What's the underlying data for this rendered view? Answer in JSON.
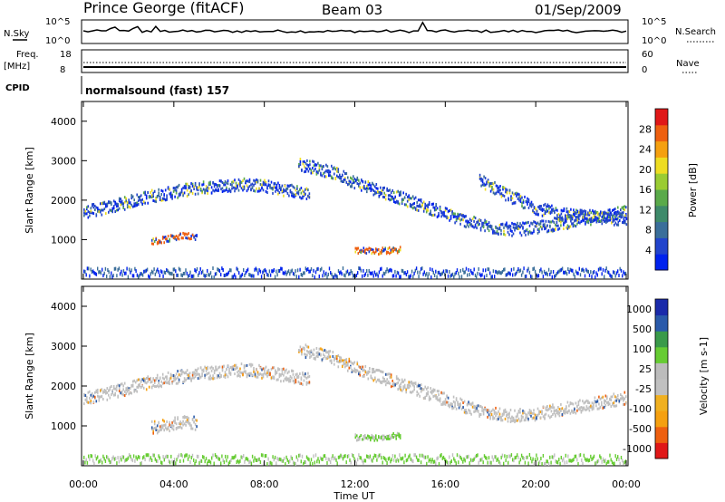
{
  "header": {
    "station": "Prince George (fitACF)",
    "beam": "Beam 03",
    "date": "01/Sep/2009"
  },
  "top_panels": {
    "nsky_label": "N.Sky",
    "nsky_ticks": [
      "10^5",
      "10^0"
    ],
    "nsearch_label": "N.Search",
    "nsearch_ticks": [
      "10^5",
      "10^0"
    ],
    "freq_label": "Freq.",
    "freq_unit": "[MHz]",
    "freq_ticks": [
      "18",
      "8"
    ],
    "nave_label": "Nave",
    "nave_ticks": [
      "60",
      "0"
    ],
    "cpid_label": "CPID",
    "cpid_text": "normalsound (fast) 157"
  },
  "time_axis": {
    "label": "Time UT",
    "ticks": [
      "00:00",
      "04:00",
      "08:00",
      "12:00",
      "16:00",
      "20:00",
      "00:00"
    ]
  },
  "colors": {
    "power_scale": [
      "#0022ee",
      "#2244cc",
      "#3a6e9a",
      "#3e8a6a",
      "#5aaa4a",
      "#9acc33",
      "#eedd22",
      "#f5a010",
      "#ee6010",
      "#e01818"
    ],
    "velocity_scale": [
      "#e01818",
      "#ee6010",
      "#f5a010",
      "#f0b020",
      "#c0c0c0",
      "#bcbcbc",
      "#66cc33",
      "#3a9a4a",
      "#2a5aaa",
      "#1a2aaa"
    ]
  },
  "chart_data": [
    {
      "type": "heatmap",
      "title": "",
      "xlabel": "Time UT",
      "ylabel": "Slant Range [km]",
      "xlim": [
        0,
        24
      ],
      "ylim": [
        0,
        4500
      ],
      "y_ticks": [
        "1000",
        "2000",
        "3000",
        "4000"
      ],
      "colorbar": {
        "label": "Power [dB]",
        "ticks": [
          "4",
          "8",
          "12",
          "16",
          "20",
          "24",
          "28"
        ],
        "range": [
          0,
          30
        ]
      },
      "scatter_bands": [
        {
          "t": [
            0,
            1,
            2,
            3,
            4,
            5,
            6,
            7,
            8,
            9,
            10
          ],
          "range_km": [
            1700,
            1800,
            1950,
            2100,
            2200,
            2300,
            2350,
            2400,
            2350,
            2250,
            2150
          ]
        },
        {
          "t": [
            9.5,
            10,
            11,
            12,
            13,
            14,
            15,
            16,
            17,
            18,
            19,
            20,
            21,
            22,
            23,
            24
          ],
          "range_km": [
            2900,
            2850,
            2700,
            2450,
            2250,
            2050,
            1850,
            1650,
            1450,
            1300,
            1250,
            1300,
            1400,
            1500,
            1600,
            1700
          ]
        },
        {
          "t": [
            17.5,
            18,
            19,
            20,
            21,
            22,
            23,
            24
          ],
          "range_km": [
            2500,
            2350,
            2050,
            1800,
            1650,
            1600,
            1550,
            1500
          ]
        },
        {
          "t": [
            3,
            3.5,
            4,
            4.5,
            5
          ],
          "range_km": [
            950,
            1000,
            1050,
            1100,
            1050
          ]
        },
        {
          "t": [
            12,
            12.5,
            13,
            13.5,
            14
          ],
          "range_km": [
            700,
            720,
            700,
            720,
            750
          ]
        }
      ]
    },
    {
      "type": "heatmap",
      "title": "",
      "xlabel": "Time UT",
      "ylabel": "Slant Range [km]",
      "xlim": [
        0,
        24
      ],
      "ylim": [
        0,
        4500
      ],
      "y_ticks": [
        "1000",
        "2000",
        "3000",
        "4000"
      ],
      "colorbar": {
        "label": "Velocity [m s-1]",
        "ticks": [
          "1000",
          "500",
          "100",
          "25",
          "-25",
          "-100",
          "-500",
          "-1000"
        ],
        "range": [
          -1000,
          1000
        ]
      },
      "scatter_bands": [
        {
          "t": [
            0,
            1,
            2,
            3,
            4,
            5,
            6,
            7,
            8,
            9,
            10
          ],
          "range_km": [
            1700,
            1800,
            1950,
            2100,
            2200,
            2300,
            2350,
            2400,
            2350,
            2250,
            2150
          ]
        },
        {
          "t": [
            9.5,
            10,
            11,
            12,
            13,
            14,
            15,
            16,
            17,
            18,
            19,
            20,
            21,
            22,
            23,
            24
          ],
          "range_km": [
            2900,
            2850,
            2700,
            2450,
            2250,
            2050,
            1850,
            1650,
            1450,
            1300,
            1250,
            1300,
            1400,
            1500,
            1600,
            1700
          ]
        },
        {
          "t": [
            3,
            3.5,
            4,
            4.5,
            5
          ],
          "range_km": [
            950,
            1000,
            1050,
            1100,
            1050
          ]
        },
        {
          "t": [
            12,
            12.5,
            13,
            13.5,
            14
          ],
          "range_km": [
            700,
            720,
            700,
            720,
            750
          ]
        }
      ]
    }
  ]
}
